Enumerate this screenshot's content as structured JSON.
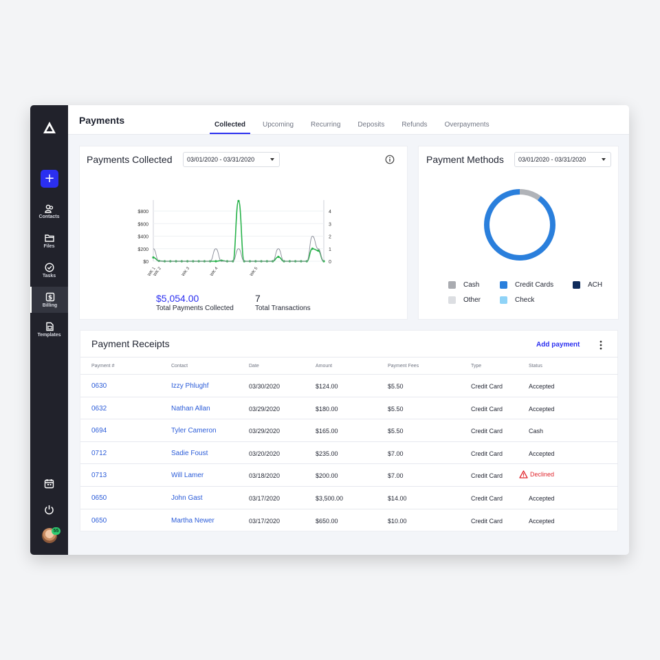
{
  "app": {
    "page_title": "Payments"
  },
  "tabs": [
    {
      "label": "Collected",
      "active": true
    },
    {
      "label": "Upcoming",
      "active": false
    },
    {
      "label": "Recurring",
      "active": false
    },
    {
      "label": "Deposits",
      "active": false
    },
    {
      "label": "Refunds",
      "active": false
    },
    {
      "label": "Overpayments",
      "active": false
    }
  ],
  "sidebar": {
    "add_label": "+",
    "items": [
      {
        "label": "Contacts",
        "icon": "contacts-icon"
      },
      {
        "label": "Files",
        "icon": "folder-icon"
      },
      {
        "label": "Tasks",
        "icon": "check-circle-icon"
      },
      {
        "label": "Billing",
        "icon": "dollar-icon",
        "active": true
      },
      {
        "label": "Templates",
        "icon": "templates-icon"
      }
    ],
    "bottom_icons": [
      "calendar-icon",
      "power-icon"
    ],
    "avatar_badge": "55"
  },
  "payments_collected": {
    "title": "Payments Collected",
    "date_range": "03/01/2020 - 03/31/2020",
    "total_value": "$5,054.00",
    "total_label": "Total Payments Collected",
    "transactions_value": "7",
    "transactions_label": "Total Transactions"
  },
  "chart_data": {
    "type": "line",
    "x_tick_labels": [
      "WK 1",
      "WK 2",
      "WK 3",
      "WK 4",
      "WK 5"
    ],
    "y_left_ticks": [
      "$800",
      "$600",
      "$400",
      "$200",
      "$0"
    ],
    "y_right_ticks": [
      "4",
      "3",
      "2",
      "1",
      "0"
    ],
    "ylim_left": [
      0,
      800
    ],
    "ylim_right": [
      0,
      4
    ],
    "series": [
      {
        "color": "#27b24a",
        "axis": "left",
        "values": [
          60,
          5,
          0,
          0,
          0,
          0,
          0,
          0,
          0,
          0,
          0,
          0,
          10,
          0,
          0,
          960,
          0,
          0,
          0,
          0,
          0,
          0,
          70,
          0,
          0,
          0,
          0,
          0,
          200,
          170,
          0
        ]
      },
      {
        "color": "#8a8e99",
        "axis": "right",
        "values": [
          1,
          0,
          0,
          0,
          0,
          0,
          0,
          0,
          0,
          0,
          0,
          1,
          0,
          0,
          0,
          1,
          0,
          0,
          0,
          0,
          0,
          0,
          1,
          0,
          0,
          0,
          0,
          0,
          2,
          1,
          0
        ]
      }
    ]
  },
  "payment_methods": {
    "title": "Payment Methods",
    "date_range": "03/01/2020 - 03/31/2020",
    "donut": [
      {
        "name": "Credit Cards",
        "share": 0.9,
        "color": "#2a7fdc"
      },
      {
        "name": "Cash",
        "share": 0.1,
        "color": "#b0b3b8"
      }
    ],
    "legend": [
      {
        "label": "Cash",
        "color": "#a9abb0"
      },
      {
        "label": "Credit Cards",
        "color": "#2a7fdc"
      },
      {
        "label": "ACH",
        "color": "#0f2b5b"
      },
      {
        "label": "Other",
        "color": "#dcdee2"
      },
      {
        "label": "Check",
        "color": "#8fd3f7"
      }
    ]
  },
  "receipts": {
    "title": "Payment Receipts",
    "add_label": "Add payment",
    "columns": [
      "Payment #",
      "Contact",
      "Date",
      "Amount",
      "Payment Fees",
      "Type",
      "Status"
    ],
    "rows": [
      {
        "number": "0630",
        "contact": "Izzy Phlughf",
        "date": "03/30/2020",
        "amount": "$124.00",
        "fees": "$5.50",
        "type": "Credit Card",
        "status": "Accepted"
      },
      {
        "number": "0632",
        "contact": "Nathan Allan",
        "date": "03/29/2020",
        "amount": "$180.00",
        "fees": "$5.50",
        "type": "Credit Card",
        "status": "Accepted"
      },
      {
        "number": "0694",
        "contact": "Tyler Cameron",
        "date": "03/29/2020",
        "amount": "$165.00",
        "fees": "$5.50",
        "type": "Credit Card",
        "status": "Cash"
      },
      {
        "number": "0712",
        "contact": "Sadie Foust",
        "date": "03/20/2020",
        "amount": "$235.00",
        "fees": "$7.00",
        "type": "Credit Card",
        "status": "Accepted"
      },
      {
        "number": "0713",
        "contact": "Will Lamer",
        "date": "03/18/2020",
        "amount": "$200.00",
        "fees": "$7.00",
        "type": "Credit Card",
        "status": "Declined"
      },
      {
        "number": "0650",
        "contact": "John Gast",
        "date": "03/17/2020",
        "amount": "$3,500.00",
        "fees": "$14.00",
        "type": "Credit Card",
        "status": "Accepted"
      },
      {
        "number": "0650",
        "contact": "Martha Newer",
        "date": "03/17/2020",
        "amount": "$650.00",
        "fees": "$10.00",
        "type": "Credit Card",
        "status": "Accepted"
      }
    ]
  }
}
